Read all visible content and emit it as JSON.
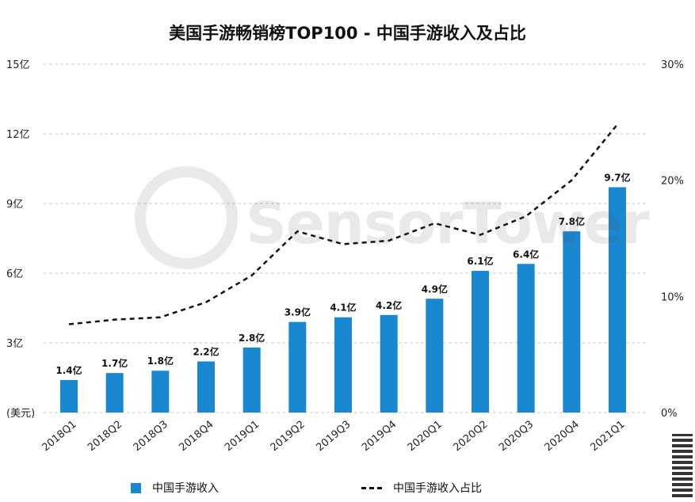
{
  "chart_data": {
    "type": "bar",
    "title": "美国手游畅销榜TOP100 - 中国手游收入及占比",
    "categories": [
      "2018Q1",
      "2018Q2",
      "2018Q3",
      "2018Q4",
      "2019Q1",
      "2019Q2",
      "2019Q3",
      "2019Q4",
      "2020Q1",
      "2020Q2",
      "2020Q3",
      "2020Q4",
      "2021Q1"
    ],
    "series": [
      {
        "name": "中国手游收入",
        "type": "bar",
        "axis": "left",
        "values": [
          1.4,
          1.7,
          1.8,
          2.2,
          2.8,
          3.9,
          4.1,
          4.2,
          4.9,
          6.1,
          6.4,
          7.8,
          9.7
        ],
        "labels": [
          "1.4亿",
          "1.7亿",
          "1.8亿",
          "2.2亿",
          "2.8亿",
          "3.9亿",
          "4.1亿",
          "4.2亿",
          "4.9亿",
          "6.1亿",
          "6.4亿",
          "7.8亿",
          "9.7亿"
        ]
      },
      {
        "name": "中国手游收入占比",
        "type": "line",
        "style": "dashed",
        "axis": "right",
        "values": [
          7.6,
          8.0,
          8.2,
          9.5,
          11.8,
          15.6,
          14.5,
          14.8,
          16.3,
          15.3,
          16.9,
          20.0,
          24.8
        ]
      }
    ],
    "y_left": {
      "min": 0,
      "max": 15,
      "ticks": [
        3,
        6,
        9,
        12,
        15
      ],
      "tick_labels": [
        "3亿",
        "6亿",
        "9亿",
        "12亿",
        "15亿"
      ],
      "unit_label": "(美元)"
    },
    "y_right": {
      "min": 0,
      "max": 30,
      "ticks": [
        0,
        10,
        20,
        30
      ],
      "tick_labels": [
        "0%",
        "10%",
        "20%",
        "30%"
      ]
    },
    "grid": true,
    "legend_position": "bottom",
    "colors": {
      "bar": "#1a88d0",
      "line": "#111111",
      "grid": "#c8c8c8"
    }
  },
  "watermark": "SensorTower"
}
